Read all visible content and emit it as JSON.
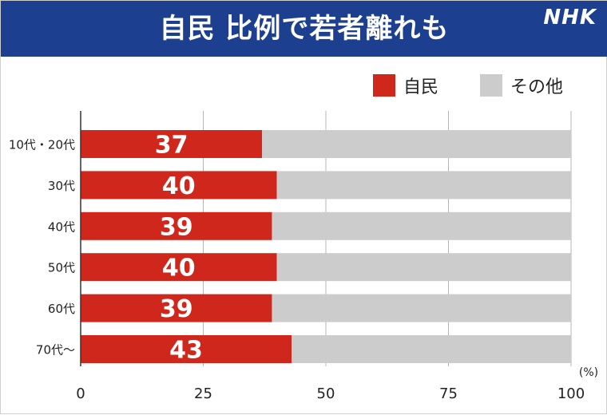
{
  "header": {
    "title": "自民 比例で若者離れも",
    "logo": "NHK"
  },
  "colors": {
    "header_bg": "#1c3f8f",
    "ldp": "#d0271d",
    "other": "#cccccc"
  },
  "chart_data": {
    "type": "bar",
    "orientation": "horizontal",
    "stacked": true,
    "categories": [
      "10代・20代",
      "30代",
      "40代",
      "50代",
      "60代",
      "70代～"
    ],
    "series": [
      {
        "name": "自民",
        "values": [
          37,
          40,
          39,
          40,
          39,
          43
        ]
      },
      {
        "name": "その他",
        "values": [
          63,
          60,
          61,
          60,
          61,
          57
        ]
      }
    ],
    "xlim": [
      0,
      100
    ],
    "xticks": [
      "0",
      "25",
      "50",
      "75",
      "100"
    ],
    "unit": "(%)",
    "grid": true,
    "legend_position": "top-right"
  }
}
